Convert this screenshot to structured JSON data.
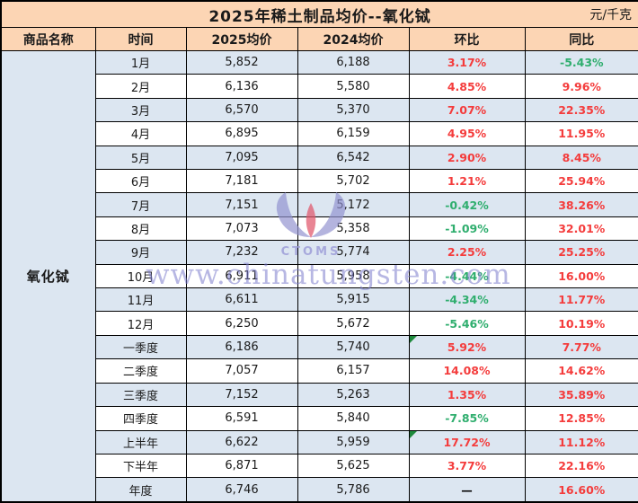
{
  "chart_data": {
    "type": "table",
    "title": "2025年稀土制品均价--氧化铽",
    "unit": "元/千克",
    "columns": [
      "商品名称",
      "时间",
      "2025均价",
      "2024均价",
      "环比",
      "同比"
    ],
    "product": "氧化铽",
    "rows": [
      {
        "period": "1月",
        "p2025": "5,852",
        "p2024": "6,188",
        "mom": "3.17%",
        "yoy": "-5.43%"
      },
      {
        "period": "2月",
        "p2025": "6,136",
        "p2024": "5,580",
        "mom": "4.85%",
        "yoy": "9.96%"
      },
      {
        "period": "3月",
        "p2025": "6,570",
        "p2024": "5,370",
        "mom": "7.07%",
        "yoy": "22.35%"
      },
      {
        "period": "4月",
        "p2025": "6,895",
        "p2024": "6,159",
        "mom": "4.95%",
        "yoy": "11.95%"
      },
      {
        "period": "5月",
        "p2025": "7,095",
        "p2024": "6,542",
        "mom": "2.90%",
        "yoy": "8.45%"
      },
      {
        "period": "6月",
        "p2025": "7,181",
        "p2024": "5,702",
        "mom": "1.21%",
        "yoy": "25.94%"
      },
      {
        "period": "7月",
        "p2025": "7,151",
        "p2024": "5,172",
        "mom": "-0.42%",
        "yoy": "38.26%"
      },
      {
        "period": "8月",
        "p2025": "7,073",
        "p2024": "5,358",
        "mom": "-1.09%",
        "yoy": "32.01%"
      },
      {
        "period": "9月",
        "p2025": "7,232",
        "p2024": "5,774",
        "mom": "2.25%",
        "yoy": "25.25%"
      },
      {
        "period": "10月",
        "p2025": "6,911",
        "p2024": "5,958",
        "mom": "-4.44%",
        "yoy": "16.00%"
      },
      {
        "period": "11月",
        "p2025": "6,611",
        "p2024": "5,915",
        "mom": "-4.34%",
        "yoy": "11.77%"
      },
      {
        "period": "12月",
        "p2025": "6,250",
        "p2024": "5,672",
        "mom": "-5.46%",
        "yoy": "10.19%"
      },
      {
        "period": "一季度",
        "p2025": "6,186",
        "p2024": "5,740",
        "mom": "5.92%",
        "yoy": "7.77%",
        "mom_flag": true
      },
      {
        "period": "二季度",
        "p2025": "7,057",
        "p2024": "6,157",
        "mom": "14.08%",
        "yoy": "14.62%"
      },
      {
        "period": "三季度",
        "p2025": "7,152",
        "p2024": "5,263",
        "mom": "1.35%",
        "yoy": "35.89%"
      },
      {
        "period": "四季度",
        "p2025": "6,591",
        "p2024": "5,840",
        "mom": "-7.85%",
        "yoy": "12.85%"
      },
      {
        "period": "上半年",
        "p2025": "6,622",
        "p2024": "5,959",
        "mom": "17.72%",
        "yoy": "11.12%",
        "mom_flag": true
      },
      {
        "period": "下半年",
        "p2025": "6,871",
        "p2024": "5,625",
        "mom": "3.77%",
        "yoy": "22.16%"
      },
      {
        "period": "年度",
        "p2025": "6,746",
        "p2024": "5,786",
        "mom": "—",
        "yoy": "16.60%"
      }
    ]
  },
  "watermark": {
    "text": "www.chinatungsten.com",
    "logo_text": "CTOMS"
  },
  "colors": {
    "title_header_bg": "#fcd5b4",
    "alt_row_bg": "#dce6f1",
    "product_cell_bg": "#b8cce4",
    "increase_red": "#f43c3c",
    "decrease_green": "#2fae6e",
    "flag_green": "#1e8a3c",
    "watermark_purple": "#7b7bcc"
  }
}
